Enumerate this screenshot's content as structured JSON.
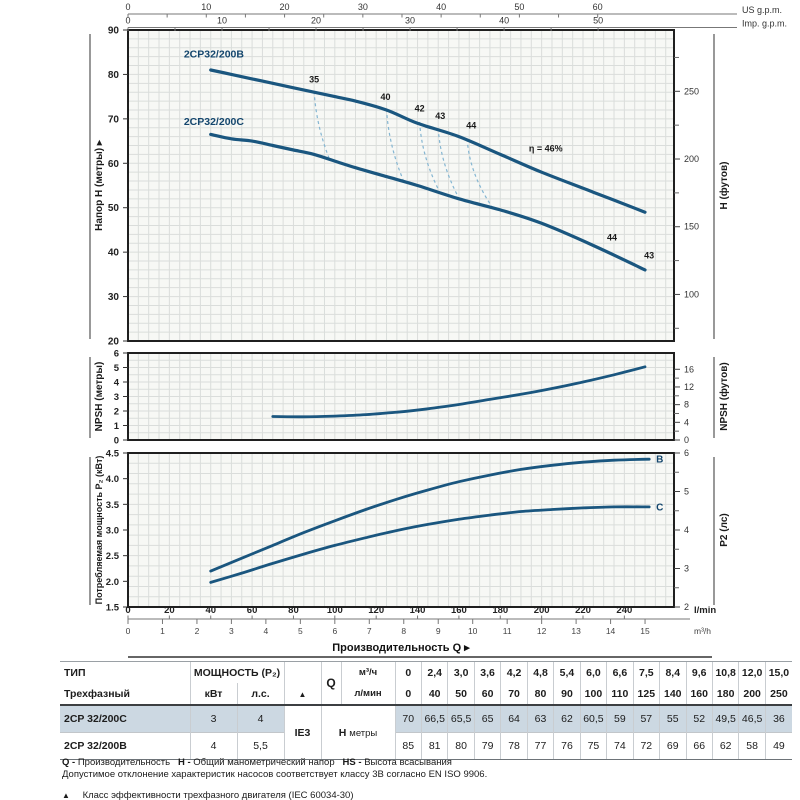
{
  "page": {
    "background": "#ffffff"
  },
  "colors": {
    "curve": "#1a567f",
    "curve_label": "#14466d",
    "eff_dashed": "#85b6d2",
    "grid": "#dadddb",
    "plot_bg": "#f7f8f5",
    "frame": "#1f1f1f",
    "row_shade": "#ccd8e2"
  },
  "top_scales": {
    "us": {
      "label": "US g.p.m.",
      "tick_max": 60,
      "tick_step": 10,
      "minor_step": 5,
      "lpm_per_unit": 3.785
    },
    "imp": {
      "label": "Imp. g.p.m.",
      "tick_max": 50,
      "tick_step": 10,
      "minor_step": 5,
      "lpm_per_unit": 4.546
    }
  },
  "bottom_axis": {
    "lmin": {
      "label": "l/min",
      "tick_max": 240,
      "tick_step": 20
    },
    "m3h": {
      "label": "m³/h",
      "tick_max": 15,
      "tick_step": 1,
      "lpm_per_unit": 16.6667
    },
    "axis_title": "Производительность Q ▸"
  },
  "chart_data": [
    {
      "id": "head",
      "type": "line",
      "ylabel_left": "Напор H (метры) ▸",
      "ylabel_right": "H (футов)",
      "xlabel": "Q (l/min)",
      "ylim": [
        20,
        90
      ],
      "yticks": [
        20,
        30,
        40,
        50,
        60,
        70,
        80,
        90
      ],
      "right_ticks_ft": [
        100,
        150,
        200,
        250
      ],
      "right_minor_ft": [
        75,
        125,
        175,
        225,
        275
      ],
      "grid": {
        "dx_lpm": 5,
        "dy": 2
      },
      "series": [
        {
          "name": "2CP32/200B",
          "points": [
            [
              40,
              81
            ],
            [
              50,
              80
            ],
            [
              60,
              79
            ],
            [
              70,
              78
            ],
            [
              80,
              77
            ],
            [
              90,
              76
            ],
            [
              100,
              75
            ],
            [
              110,
              74
            ],
            [
              125,
              72
            ],
            [
              140,
              69
            ],
            [
              160,
              66
            ],
            [
              180,
              62
            ],
            [
              200,
              58
            ],
            [
              225,
              53.5
            ],
            [
              250,
              49
            ]
          ],
          "label_at": [
            27,
            83.8
          ]
        },
        {
          "name": "2CP32/200C",
          "points": [
            [
              40,
              66.5
            ],
            [
              50,
              65.5
            ],
            [
              60,
              65
            ],
            [
              70,
              64
            ],
            [
              80,
              63
            ],
            [
              90,
              62
            ],
            [
              100,
              60.5
            ],
            [
              110,
              59
            ],
            [
              125,
              57
            ],
            [
              140,
              55
            ],
            [
              160,
              52
            ],
            [
              180,
              49.5
            ],
            [
              200,
              46.5
            ],
            [
              225,
              41.5
            ],
            [
              250,
              36
            ]
          ],
          "label_at": [
            27,
            68.6
          ]
        }
      ],
      "efficiency_lines": [
        {
          "label": "35",
          "from": [
            90,
            76.2
          ],
          "to": [
            97.5,
            60.8
          ],
          "label_at": [
            90,
            78.2
          ]
        },
        {
          "label": "40",
          "from": [
            125,
            72.2
          ],
          "to": [
            133,
            56.3
          ],
          "label_at": [
            124.5,
            74.3
          ]
        },
        {
          "label": "42",
          "from": [
            141,
            69.3
          ],
          "to": [
            150,
            54.2
          ],
          "label_at": [
            141,
            71.7
          ]
        },
        {
          "label": "43",
          "from": [
            150,
            67.9
          ],
          "to": [
            159.5,
            52.6
          ],
          "label_at": [
            151,
            70.0
          ]
        },
        {
          "label": "44",
          "from": [
            164,
            65.5
          ],
          "to": [
            176,
            50.2
          ],
          "label_at": [
            166,
            67.8
          ]
        }
      ],
      "annotations": [
        {
          "text": "η = 46%",
          "at": [
            202,
            62.6
          ],
          "bold": true
        },
        {
          "text": "44",
          "at": [
            234,
            42.6
          ],
          "bold": true
        },
        {
          "text": "43",
          "at": [
            252,
            38.6
          ],
          "bold": true
        }
      ]
    },
    {
      "id": "npsh",
      "type": "line",
      "ylabel_left": "NPSH (метры)",
      "ylabel_right": "NPSH (футов)",
      "ylim": [
        0,
        6
      ],
      "yticks": [
        0,
        1,
        2,
        3,
        4,
        5,
        6
      ],
      "right_ticks_ft": [
        0,
        4,
        8,
        12,
        16
      ],
      "right_minor_ft": [
        2,
        6,
        10,
        14
      ],
      "grid": {
        "dx_lpm": 5,
        "dy": 0.5
      },
      "series": [
        {
          "name": "NPSH",
          "points": [
            [
              70,
              1.62
            ],
            [
              85,
              1.6
            ],
            [
              100,
              1.65
            ],
            [
              115,
              1.75
            ],
            [
              130,
              1.92
            ],
            [
              145,
              2.15
            ],
            [
              160,
              2.45
            ],
            [
              175,
              2.8
            ],
            [
              190,
              3.15
            ],
            [
              205,
              3.55
            ],
            [
              220,
              4.0
            ],
            [
              235,
              4.5
            ],
            [
              250,
              5.05
            ]
          ]
        }
      ]
    },
    {
      "id": "p2",
      "type": "line",
      "ylabel_left": "Потребляемая мощность P₂ (кВт)",
      "ylabel_right": "P2 (лс)",
      "ylim": [
        1.5,
        4.5
      ],
      "yticks": [
        1.5,
        2.0,
        2.5,
        3.0,
        3.5,
        4.0,
        4.5
      ],
      "right_ticks_hp": [
        2,
        3,
        4,
        5,
        6
      ],
      "right_minor_hp": [
        2.5,
        3.5,
        4.5,
        5.5
      ],
      "grid": {
        "dx_lpm": 5,
        "dy": 0.2
      },
      "series": [
        {
          "name": "B",
          "end_label": "B",
          "points": [
            [
              40,
              2.2
            ],
            [
              55,
              2.45
            ],
            [
              70,
              2.7
            ],
            [
              85,
              2.95
            ],
            [
              100,
              3.18
            ],
            [
              115,
              3.4
            ],
            [
              130,
              3.6
            ],
            [
              145,
              3.78
            ],
            [
              160,
              3.94
            ],
            [
              175,
              4.07
            ],
            [
              190,
              4.18
            ],
            [
              205,
              4.26
            ],
            [
              220,
              4.32
            ],
            [
              235,
              4.36
            ],
            [
              252,
              4.38
            ]
          ]
        },
        {
          "name": "C",
          "end_label": "C",
          "points": [
            [
              40,
              1.98
            ],
            [
              55,
              2.16
            ],
            [
              70,
              2.35
            ],
            [
              85,
              2.53
            ],
            [
              100,
              2.7
            ],
            [
              115,
              2.85
            ],
            [
              130,
              2.99
            ],
            [
              145,
              3.11
            ],
            [
              160,
              3.21
            ],
            [
              175,
              3.29
            ],
            [
              190,
              3.36
            ],
            [
              205,
              3.4
            ],
            [
              220,
              3.43
            ],
            [
              235,
              3.45
            ],
            [
              252,
              3.45
            ]
          ]
        }
      ]
    }
  ],
  "table": {
    "type_header": "ТИП",
    "type_subheader": "Трехфазный",
    "power_header": "МОЩНОСТЬ (P₂)",
    "kw_header": "кВт",
    "hp_header": "л.с.",
    "class_mark": "▲",
    "q_header": "Q",
    "unit_m3h": "м³/ч",
    "unit_lmin": "л/мин",
    "flow_m3h": [
      "0",
      "2,4",
      "3,0",
      "3,6",
      "4,2",
      "4,8",
      "5,4",
      "6,0",
      "6,6",
      "7,5",
      "8,4",
      "9,6",
      "10,8",
      "12,0",
      "15,0"
    ],
    "flow_lmin": [
      "0",
      "40",
      "50",
      "60",
      "70",
      "80",
      "90",
      "100",
      "110",
      "125",
      "140",
      "160",
      "180",
      "200",
      "250"
    ],
    "ie_class": "IE3",
    "h_label": "H",
    "h_unit": "метры",
    "rows": [
      {
        "type": "2CP 32/200C",
        "kw": "3",
        "hp": "4",
        "shaded": true,
        "values": [
          "70",
          "66,5",
          "65,5",
          "65",
          "64",
          "63",
          "62",
          "60,5",
          "59",
          "57",
          "55",
          "52",
          "49,5",
          "46,5",
          "36"
        ]
      },
      {
        "type": "2CP 32/200B",
        "kw": "4",
        "hp": "5,5",
        "shaded": false,
        "values": [
          "85",
          "81",
          "80",
          "79",
          "78",
          "77",
          "76",
          "75",
          "74",
          "72",
          "69",
          "66",
          "62",
          "58",
          "49"
        ]
      }
    ]
  },
  "footnotes": {
    "q_term": "Q -",
    "q_def": "Производительность",
    "h_term": "H -",
    "h_def": "Общий манометрический напор",
    "hs_term": "HS -",
    "hs_def": "Высота всасывания",
    "tolerance": "Допустимое отклонение характеристик насосов соответствует классу 3B согласно EN ISO 9906.",
    "triangle": "▲",
    "iec_note": "Класс эффективности трехфазного двигателя (IEC 60034-30)"
  }
}
